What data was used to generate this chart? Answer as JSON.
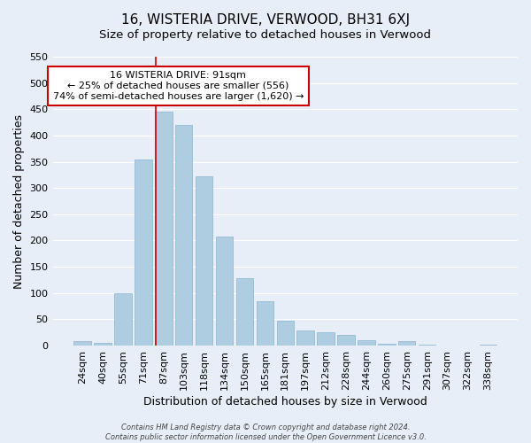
{
  "title": "16, WISTERIA DRIVE, VERWOOD, BH31 6XJ",
  "subtitle": "Size of property relative to detached houses in Verwood",
  "xlabel": "Distribution of detached houses by size in Verwood",
  "ylabel": "Number of detached properties",
  "bar_labels": [
    "24sqm",
    "40sqm",
    "55sqm",
    "71sqm",
    "87sqm",
    "103sqm",
    "118sqm",
    "134sqm",
    "150sqm",
    "165sqm",
    "181sqm",
    "197sqm",
    "212sqm",
    "228sqm",
    "244sqm",
    "260sqm",
    "275sqm",
    "291sqm",
    "307sqm",
    "322sqm",
    "338sqm"
  ],
  "bar_values": [
    8,
    5,
    100,
    355,
    445,
    420,
    323,
    207,
    129,
    85,
    48,
    29,
    25,
    20,
    10,
    3,
    8,
    2,
    0,
    0,
    2
  ],
  "bar_color": "#aecde0",
  "bar_edge_color": "#aecde0",
  "highlight_line_color": "#cc0000",
  "ylim": [
    0,
    550
  ],
  "yticks": [
    0,
    50,
    100,
    150,
    200,
    250,
    300,
    350,
    400,
    450,
    500,
    550
  ],
  "annotation_title": "16 WISTERIA DRIVE: 91sqm",
  "annotation_line1": "← 25% of detached houses are smaller (556)",
  "annotation_line2": "74% of semi-detached houses are larger (1,620) →",
  "annotation_box_color": "#ffffff",
  "annotation_box_edge": "#cc0000",
  "footer_line1": "Contains HM Land Registry data © Crown copyright and database right 2024.",
  "footer_line2": "Contains public sector information licensed under the Open Government Licence v3.0.",
  "background_color": "#e8eef8",
  "grid_color": "#ffffff",
  "title_fontsize": 11,
  "subtitle_fontsize": 9.5,
  "axis_label_fontsize": 9,
  "tick_fontsize": 8
}
